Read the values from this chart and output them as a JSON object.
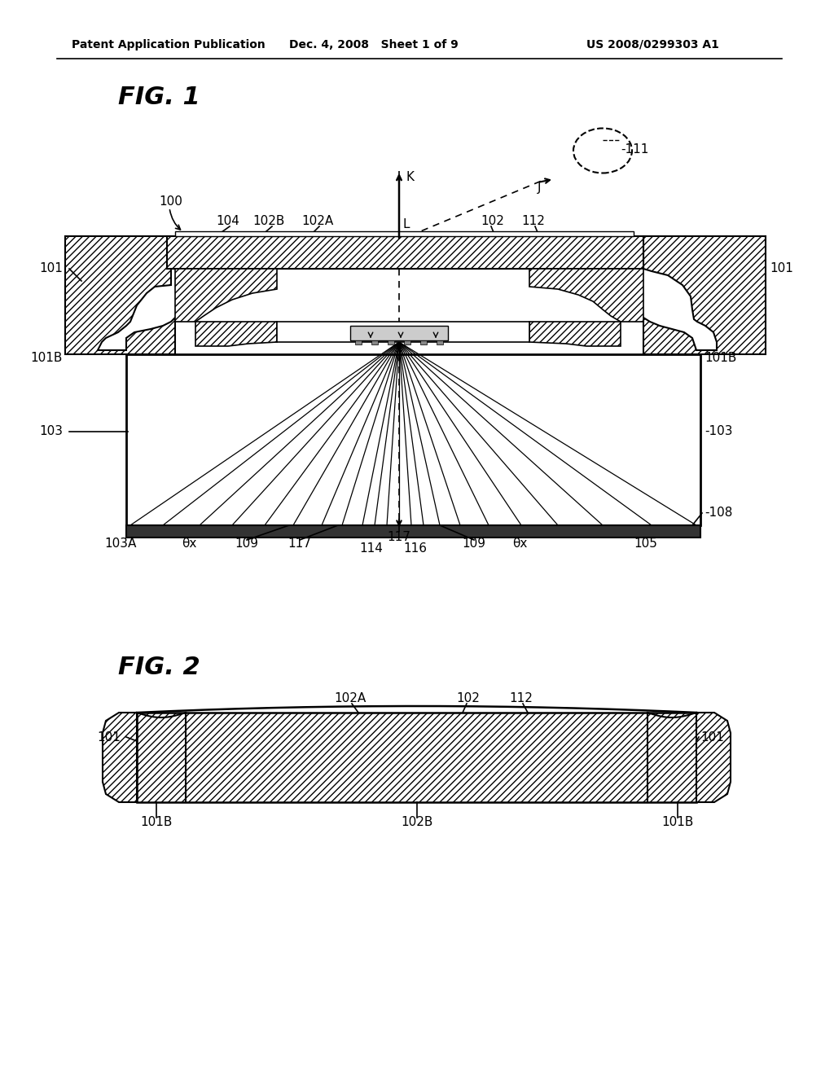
{
  "bg_color": "#ffffff",
  "header_left": "Patent Application Publication",
  "header_center": "Dec. 4, 2008   Sheet 1 of 9",
  "header_right": "US 2008/0299303 A1",
  "fig1_title": "FIG. 1",
  "fig2_title": "FIG. 2"
}
